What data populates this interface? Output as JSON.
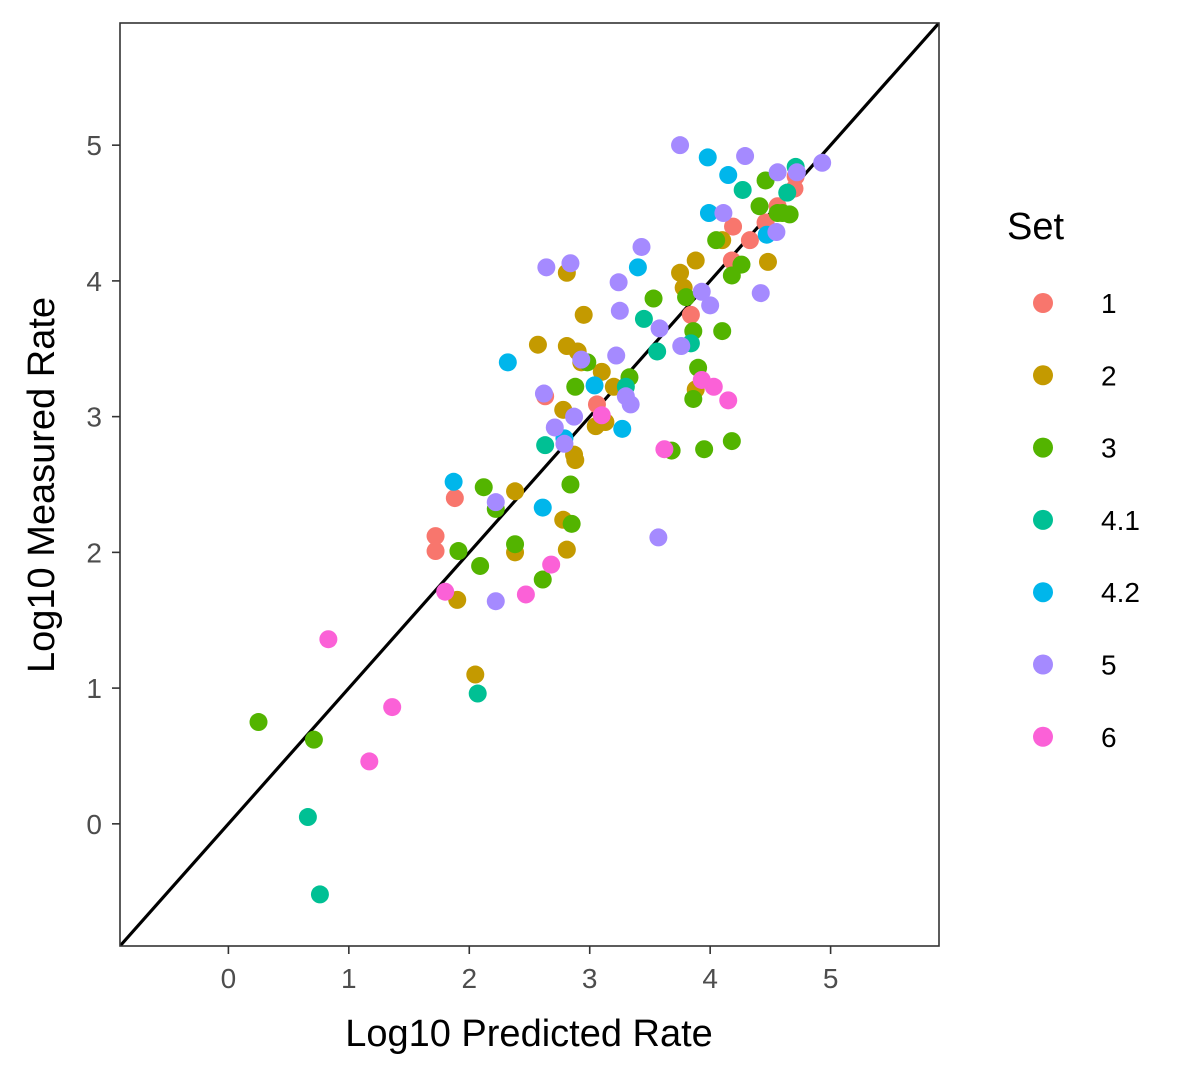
{
  "chart_data": {
    "type": "scatter",
    "title": "",
    "xlabel": "Log10 Predicted Rate",
    "ylabel": "Log10 Measured Rate",
    "xlim": [
      -0.9,
      5.9
    ],
    "ylim": [
      -0.9,
      5.9
    ],
    "xticks": [
      "0",
      "1",
      "2",
      "3",
      "4",
      "5"
    ],
    "yticks": [
      "0",
      "1",
      "2",
      "3",
      "4",
      "5"
    ],
    "grid": false,
    "reference_line": "y = x",
    "legend": {
      "title": "Set",
      "placement": "right"
    },
    "series": [
      {
        "name": "1",
        "color": "#F8766D",
        "points": [
          [
            1.72,
            2.01
          ],
          [
            1.72,
            2.12
          ],
          [
            1.88,
            2.4
          ],
          [
            2.63,
            3.15
          ],
          [
            3.06,
            3.09
          ],
          [
            3.84,
            3.75
          ],
          [
            4.18,
            4.15
          ],
          [
            4.19,
            4.4
          ],
          [
            4.33,
            4.3
          ],
          [
            4.46,
            4.43
          ],
          [
            4.56,
            4.55
          ],
          [
            4.7,
            4.68
          ],
          [
            4.71,
            4.77
          ]
        ]
      },
      {
        "name": "2",
        "color": "#C49A00",
        "points": [
          [
            1.9,
            1.65
          ],
          [
            2.05,
            1.1
          ],
          [
            2.38,
            2.0
          ],
          [
            2.38,
            2.45
          ],
          [
            2.57,
            3.53
          ],
          [
            2.78,
            2.24
          ],
          [
            2.81,
            2.02
          ],
          [
            2.81,
            4.06
          ],
          [
            2.81,
            3.52
          ],
          [
            2.78,
            3.05
          ],
          [
            2.88,
            2.68
          ],
          [
            2.87,
            2.72
          ],
          [
            2.9,
            3.48
          ],
          [
            2.93,
            3.4
          ],
          [
            2.95,
            3.75
          ],
          [
            3.05,
            2.93
          ],
          [
            3.1,
            3.33
          ],
          [
            3.13,
            2.96
          ],
          [
            3.2,
            3.22
          ],
          [
            3.75,
            4.06
          ],
          [
            3.78,
            3.95
          ],
          [
            3.88,
            4.15
          ],
          [
            3.88,
            3.2
          ],
          [
            4.1,
            4.3
          ],
          [
            4.48,
            4.14
          ]
        ]
      },
      {
        "name": "3",
        "color": "#53B400",
        "points": [
          [
            0.25,
            0.75
          ],
          [
            0.71,
            0.62
          ],
          [
            1.91,
            2.01
          ],
          [
            2.09,
            1.9
          ],
          [
            2.12,
            2.48
          ],
          [
            2.22,
            2.32
          ],
          [
            2.38,
            2.06
          ],
          [
            2.61,
            1.8
          ],
          [
            2.84,
            2.5
          ],
          [
            2.85,
            2.21
          ],
          [
            2.88,
            3.22
          ],
          [
            2.98,
            3.4
          ],
          [
            3.33,
            3.29
          ],
          [
            3.53,
            3.87
          ],
          [
            3.68,
            2.75
          ],
          [
            3.8,
            3.88
          ],
          [
            3.86,
            3.13
          ],
          [
            3.86,
            3.63
          ],
          [
            3.9,
            3.36
          ],
          [
            3.95,
            2.76
          ],
          [
            4.05,
            4.3
          ],
          [
            4.1,
            3.63
          ],
          [
            4.18,
            2.82
          ],
          [
            4.18,
            4.04
          ],
          [
            4.26,
            4.12
          ],
          [
            4.41,
            4.55
          ],
          [
            4.46,
            4.74
          ],
          [
            4.56,
            4.5
          ],
          [
            4.6,
            4.5
          ],
          [
            4.66,
            4.49
          ]
        ]
      },
      {
        "name": "4.1",
        "color": "#00C094",
        "points": [
          [
            0.66,
            0.05
          ],
          [
            0.76,
            -0.52
          ],
          [
            2.07,
            0.96
          ],
          [
            2.63,
            2.79
          ],
          [
            3.3,
            3.22
          ],
          [
            3.45,
            3.72
          ],
          [
            3.56,
            3.48
          ],
          [
            3.84,
            3.54
          ],
          [
            4.27,
            4.67
          ],
          [
            4.64,
            4.65
          ],
          [
            4.71,
            4.84
          ]
        ]
      },
      {
        "name": "4.2",
        "color": "#00B6EB",
        "points": [
          [
            1.87,
            2.52
          ],
          [
            2.32,
            3.4
          ],
          [
            2.61,
            2.33
          ],
          [
            2.79,
            2.84
          ],
          [
            3.04,
            3.23
          ],
          [
            3.27,
            2.91
          ],
          [
            3.4,
            4.1
          ],
          [
            3.98,
            4.91
          ],
          [
            3.99,
            4.5
          ],
          [
            4.15,
            4.78
          ],
          [
            4.47,
            4.34
          ]
        ]
      },
      {
        "name": "5",
        "color": "#A58AFF",
        "points": [
          [
            2.22,
            2.37
          ],
          [
            2.22,
            1.64
          ],
          [
            2.62,
            3.17
          ],
          [
            2.64,
            4.1
          ],
          [
            2.71,
            2.92
          ],
          [
            2.79,
            2.8
          ],
          [
            2.84,
            4.13
          ],
          [
            2.87,
            3.0
          ],
          [
            2.93,
            3.42
          ],
          [
            3.22,
            3.45
          ],
          [
            3.24,
            3.99
          ],
          [
            3.25,
            3.78
          ],
          [
            3.3,
            3.15
          ],
          [
            3.34,
            3.09
          ],
          [
            3.43,
            4.25
          ],
          [
            3.57,
            2.11
          ],
          [
            3.58,
            3.65
          ],
          [
            3.75,
            5.0
          ],
          [
            3.76,
            3.52
          ],
          [
            3.93,
            3.92
          ],
          [
            4.0,
            3.82
          ],
          [
            4.11,
            4.5
          ],
          [
            4.29,
            4.92
          ],
          [
            4.42,
            3.91
          ],
          [
            4.55,
            4.36
          ],
          [
            4.56,
            4.8
          ],
          [
            4.72,
            4.8
          ],
          [
            4.93,
            4.87
          ]
        ]
      },
      {
        "name": "6",
        "color": "#FB61D7",
        "points": [
          [
            0.83,
            1.36
          ],
          [
            1.17,
            0.46
          ],
          [
            1.36,
            0.86
          ],
          [
            1.8,
            1.71
          ],
          [
            2.47,
            1.69
          ],
          [
            2.68,
            1.91
          ],
          [
            3.1,
            3.01
          ],
          [
            3.62,
            2.76
          ],
          [
            3.93,
            3.27
          ],
          [
            4.03,
            3.22
          ],
          [
            4.15,
            3.12
          ]
        ]
      }
    ]
  }
}
